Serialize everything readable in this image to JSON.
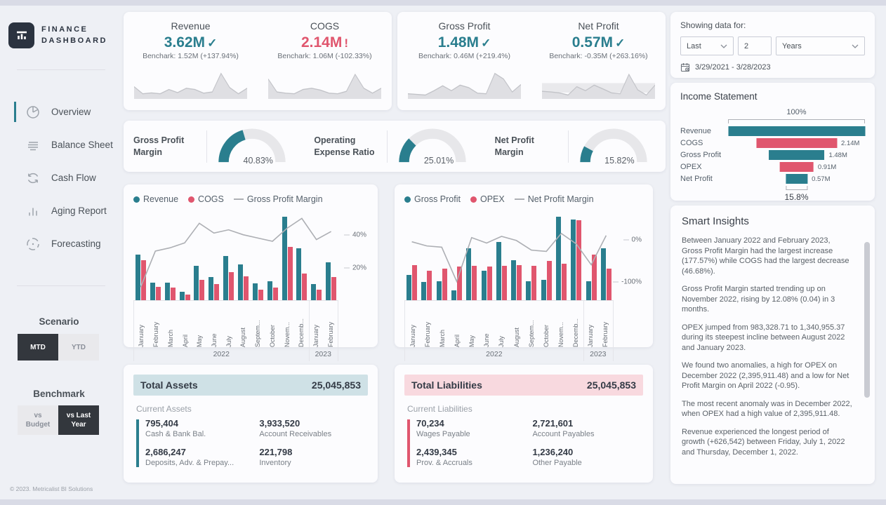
{
  "theme": {
    "teal": "#2A7E8E",
    "pink": "#E0566E",
    "line_gray": "#ADAFB4",
    "dark": "#33373D",
    "navy": "#2B3340",
    "spark_fill": "#DFDFE3",
    "spark_line": "#C2C3C8"
  },
  "brand": {
    "line1": "FINANCE",
    "line2": "DASHBOARD"
  },
  "sidebar": {
    "items": [
      {
        "label": "Overview",
        "icon": "pie-chart-icon",
        "active": true
      },
      {
        "label": "Balance Sheet",
        "icon": "list-icon",
        "active": false
      },
      {
        "label": "Cash Flow",
        "icon": "cycle-icon",
        "active": false
      },
      {
        "label": "Aging Report",
        "icon": "bar-chart-icon",
        "active": false
      },
      {
        "label": "Forecasting",
        "icon": "dashed-circle-icon",
        "active": false
      }
    ],
    "scenario": {
      "title": "Scenario",
      "options": [
        {
          "label": "MTD",
          "active": true
        },
        {
          "label": "YTD",
          "active": false
        }
      ]
    },
    "benchmark": {
      "title": "Benchmark",
      "options": [
        {
          "label": "vs Budget",
          "active": false
        },
        {
          "label": "vs Last Year",
          "active": true
        }
      ]
    },
    "footer": "© 2023. Metricalist BI Solutions"
  },
  "kpis": [
    {
      "title": "Revenue",
      "value": "3.62M",
      "status": "✓",
      "benchmark": "Benchark: 1.52M (+137.94%)"
    },
    {
      "title": "COGS",
      "value": "2.14M",
      "status": "!",
      "benchmark": "Benchark: 1.06M (-102.33%)"
    },
    {
      "title": "Gross Profit",
      "value": "1.48M",
      "status": "✓",
      "benchmark": "Benchark: 0.46M (+219.4%)"
    },
    {
      "title": "Net Profit",
      "value": "0.57M",
      "status": "✓",
      "benchmark": "Benchark: -0.35M (+263.16%)"
    }
  ],
  "filter": {
    "title": "Showing data for:",
    "period_type": "Last",
    "period_value": "2",
    "period_unit": "Years",
    "date_range": "3/29/2021 - 3/28/2023"
  },
  "income_statement": {
    "title": "Income Statement"
  },
  "smart_insights": {
    "title": "Smart Insights",
    "paragraphs": [
      "Between January 2022 and February 2023, Gross Profit Margin had the largest increase (177.57%) while COGS had the largest decrease (46.68%).",
      "Gross Profit Margin started trending up on November 2022, rising by 12.08% (0.04) in 3 months.",
      "OPEX jumped from 983,328.71 to 1,340,955.37 during its steepest incline between August 2022 and January 2023.",
      "We found two anomalies, a high for OPEX on December 2022 (2,395,911.48) and a low for Net Profit Margin on April 2022 (-0.95).",
      "The most recent anomaly was in December 2022, when OPEX had a high value of 2,395,911.48.",
      "Revenue experienced the longest period of growth (+626,542) between Friday, July 1, 2022 and Thursday, December 1, 2022."
    ]
  },
  "assets": {
    "title": "Total Assets",
    "total": "25,045,853",
    "section": "Current Assets",
    "items": [
      {
        "value": "795,404",
        "label": "Cash & Bank Bal."
      },
      {
        "value": "3,933,520",
        "label": "Account Receivables"
      },
      {
        "value": "2,686,247",
        "label": "Deposits, Adv. & Prepay..."
      },
      {
        "value": "221,798",
        "label": "Inventory"
      }
    ]
  },
  "liabilities": {
    "title": "Total Liabilities",
    "total": "25,045,853",
    "section": "Current Liabilities",
    "items": [
      {
        "value": "70,234",
        "label": "Wages Payable"
      },
      {
        "value": "2,721,601",
        "label": "Account Payables"
      },
      {
        "value": "2,439,345",
        "label": "Prov. & Accruals"
      },
      {
        "value": "1,236,240",
        "label": "Other Payable"
      }
    ]
  },
  "chart_data": [
    {
      "id": "revenue-cogs",
      "type": "bar+line",
      "title": "Revenue vs COGS with Gross Profit Margin",
      "categories": [
        "January",
        "February",
        "March",
        "April",
        "May",
        "June",
        "July",
        "August",
        "Septem...",
        "October",
        "Novem...",
        "Decemb...",
        "January",
        "February"
      ],
      "year_groups": [
        {
          "label": "2022",
          "span": 12
        },
        {
          "label": "2023",
          "span": 2
        }
      ],
      "bar_units": "percent of tallest bar (absolute scale unlabeled)",
      "series": [
        {
          "name": "Revenue",
          "color": "#2A7E8E",
          "values": [
            55,
            21,
            21,
            10,
            41,
            28,
            53,
            43,
            20,
            23,
            100,
            62,
            19,
            45
          ]
        },
        {
          "name": "COGS",
          "color": "#E0566E",
          "values": [
            48,
            16,
            15,
            7,
            24,
            19,
            34,
            29,
            13,
            15,
            64,
            32,
            13,
            28
          ]
        }
      ],
      "line": {
        "name": "Gross Profit Margin",
        "color": "#ADAFB4",
        "unit": "%",
        "values": [
          8,
          30,
          32,
          35,
          47,
          41,
          43,
          40,
          38,
          36,
          44,
          50,
          37,
          42
        ]
      },
      "line_scale": {
        "min": 0,
        "max": 51
      },
      "ticks": [
        {
          "label": "40%",
          "value": 40
        },
        {
          "label": "20%",
          "value": 20
        }
      ],
      "legend": [
        "Revenue",
        "COGS",
        "Gross Profit Margin"
      ]
    },
    {
      "id": "gp-opex",
      "type": "bar+line",
      "title": "Gross Profit vs OPEX with Net Profit Margin",
      "categories": [
        "January",
        "February",
        "March",
        "April",
        "May",
        "June",
        "July",
        "August",
        "Septem...",
        "October",
        "Novem...",
        "Decemb...",
        "January",
        "February"
      ],
      "year_groups": [
        {
          "label": "2022",
          "span": 12
        },
        {
          "label": "2023",
          "span": 2
        }
      ],
      "bar_units": "percent of tallest bar (absolute scale unlabeled)",
      "series": [
        {
          "name": "Gross Profit",
          "color": "#2A7E8E",
          "values": [
            30,
            22,
            23,
            12,
            62,
            35,
            70,
            48,
            23,
            24,
            100,
            97,
            23,
            62
          ]
        },
        {
          "name": "OPEX",
          "color": "#E0566E",
          "values": [
            42,
            35,
            38,
            40,
            41,
            40,
            41,
            42,
            41,
            47,
            44,
            96,
            55,
            38
          ]
        }
      ],
      "line": {
        "name": "Net Profit Margin",
        "color": "#ADAFB4",
        "unit": "%",
        "values": [
          -5,
          -15,
          -18,
          -100,
          5,
          -8,
          8,
          -2,
          -25,
          -28,
          15,
          -10,
          -60,
          10
        ]
      },
      "line_scale": {
        "min": -145,
        "max": 55
      },
      "ticks": [
        {
          "label": "0%",
          "value": 0
        },
        {
          "label": "-100%",
          "value": -100
        }
      ],
      "legend": [
        "Gross Profit",
        "OPEX",
        "Net Profit Margin"
      ]
    },
    {
      "id": "income-funnel",
      "type": "funnel",
      "top_label": "100%",
      "bottom_label": "15.8%",
      "bottom_pct": 16,
      "rows": [
        {
          "label": "Revenue",
          "pct": 100,
          "value": "",
          "color": "#2A7E8E"
        },
        {
          "label": "COGS",
          "pct": 59,
          "value": "2.14M",
          "color": "#E0566E"
        },
        {
          "label": "Gross Profit",
          "pct": 41,
          "value": "1.48M",
          "color": "#2A7E8E"
        },
        {
          "label": "OPEX",
          "pct": 25,
          "value": "0.91M",
          "color": "#E0566E"
        },
        {
          "label": "Net Profit",
          "pct": 16,
          "value": "0.57M",
          "color": "#2A7E8E"
        }
      ]
    },
    {
      "id": "gauges",
      "type": "gauge",
      "color": "#2A7E8E",
      "track": "#E7E7EA",
      "items": [
        {
          "label": "Gross Profit Margin",
          "value": "40.83%",
          "pct": 40.83
        },
        {
          "label": "Operating Expense Ratio",
          "value": "25.01%",
          "pct": 25.01
        },
        {
          "label": "Net Profit Margin",
          "value": "15.82%",
          "pct": 15.82
        }
      ]
    },
    {
      "id": "sparklines",
      "type": "area",
      "units": "relative trend (unlabeled)",
      "series": [
        {
          "kpi": "Revenue",
          "values": [
            35,
            12,
            15,
            12,
            26,
            16,
            30,
            26,
            14,
            18,
            78,
            32,
            12,
            30
          ]
        },
        {
          "kpi": "COGS",
          "values": [
            60,
            18,
            14,
            12,
            26,
            30,
            24,
            14,
            12,
            20,
            75,
            30,
            14,
            30
          ]
        },
        {
          "kpi": "Gross Profit",
          "values": [
            12,
            10,
            8,
            22,
            38,
            22,
            40,
            32,
            14,
            12,
            78,
            60,
            18,
            42
          ]
        },
        {
          "kpi": "Net Profit",
          "values": [
            20,
            18,
            15,
            8,
            35,
            22,
            40,
            28,
            15,
            12,
            75,
            25,
            8,
            40
          ],
          "band": true
        }
      ]
    }
  ]
}
